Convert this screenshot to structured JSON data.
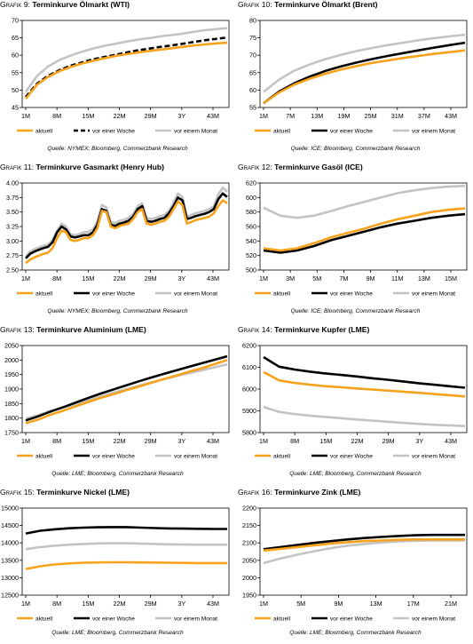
{
  "colors": {
    "aktuell": "#f7a21b",
    "woche": "#000000",
    "monat": "#c3c3c3"
  },
  "chart_data": [
    {
      "type": "line",
      "prefix": "Grafik 9:",
      "name": "Terminkurve Ölmarkt (WTI)",
      "source": "Quelle: NYMEX; Bloomberg, Commerzbank Research",
      "ylim": [
        45,
        70
      ],
      "yticks": [
        "45",
        "50",
        "55",
        "60",
        "65",
        "70"
      ],
      "xticks": [
        "1M",
        "8M",
        "15M",
        "22M",
        "29M",
        "3Y",
        "43M"
      ],
      "series": [
        {
          "name": "aktuell",
          "style": "aktuell",
          "values": [
            47.5,
            51.5,
            53.8,
            55.4,
            56.6,
            57.6,
            58.4,
            59.1,
            59.8,
            60.3,
            60.8,
            61.2,
            61.6,
            62.0,
            62.4,
            62.8,
            63.1,
            63.4,
            63.6
          ]
        },
        {
          "name": "vor einer Woche",
          "style": "woche-dash",
          "values": [
            48.0,
            51.8,
            54.1,
            55.7,
            57.0,
            57.9,
            58.8,
            59.5,
            60.1,
            60.8,
            61.4,
            61.9,
            62.4,
            62.8,
            63.3,
            63.8,
            64.3,
            64.7,
            65.1
          ]
        },
        {
          "name": "vor einem Monat",
          "style": "monat",
          "values": [
            49.5,
            54.0,
            56.8,
            58.6,
            59.9,
            61.0,
            61.9,
            62.7,
            63.3,
            63.9,
            64.5,
            64.9,
            65.4,
            65.8,
            66.2,
            66.7,
            67.2,
            67.5,
            67.8
          ]
        }
      ]
    },
    {
      "type": "line",
      "prefix": "Grafik 10:",
      "name": "Terminkurve Ölmarkt (Brent)",
      "source": "Quelle: ICE; Bloomberg, Commerzbank Research",
      "ylim": [
        55,
        80
      ],
      "yticks": [
        "55",
        "60",
        "65",
        "70",
        "75",
        "80"
      ],
      "xticks": [
        "1M",
        "7M",
        "13M",
        "19M",
        "25M",
        "31M",
        "37M",
        "43M"
      ],
      "series": [
        {
          "name": "aktuell",
          "style": "aktuell",
          "values": [
            56.2,
            59.3,
            61.6,
            63.3,
            64.7,
            65.9,
            66.9,
            67.8,
            68.5,
            69.2,
            69.8,
            70.4,
            70.9,
            71.4
          ]
        },
        {
          "name": "vor einer Woche",
          "style": "woche",
          "values": [
            56.2,
            59.6,
            62.0,
            63.9,
            65.5,
            66.8,
            67.9,
            68.9,
            69.8,
            70.6,
            71.4,
            72.2,
            72.9,
            73.6
          ]
        },
        {
          "name": "vor einem Monat",
          "style": "monat",
          "values": [
            59.5,
            63.0,
            65.6,
            67.4,
            68.9,
            70.1,
            71.2,
            72.1,
            72.9,
            73.6,
            74.3,
            74.9,
            75.4,
            75.9
          ]
        }
      ]
    },
    {
      "type": "line",
      "prefix": "Grafik 11:",
      "name": "Terminkurve Gasmarkt (Henry Hub)",
      "source": "Quelle: NYMEX; Bloomberg, Commerzbank Research",
      "ylim": [
        2.5,
        4.0
      ],
      "yticks": [
        "2.50",
        "2.75",
        "3.00",
        "3.25",
        "3.50",
        "3.75",
        "4.00"
      ],
      "xticks": [
        "1M",
        "8M",
        "15M",
        "22M",
        "29M",
        "3Y",
        "43M"
      ],
      "series": [
        {
          "name": "aktuell",
          "style": "aktuell",
          "values": [
            2.62,
            2.68,
            2.72,
            2.75,
            2.78,
            2.8,
            2.88,
            3.05,
            3.18,
            3.15,
            3.02,
            3.0,
            3.02,
            3.05,
            3.05,
            3.1,
            3.22,
            3.52,
            3.5,
            3.25,
            3.22,
            3.26,
            3.28,
            3.3,
            3.38,
            3.5,
            3.55,
            3.3,
            3.28,
            3.3,
            3.33,
            3.35,
            3.42,
            3.55,
            3.68,
            3.62,
            3.3,
            3.33,
            3.36,
            3.38,
            3.4,
            3.42,
            3.48,
            3.6,
            3.7,
            3.65
          ]
        },
        {
          "name": "vor einer Woche",
          "style": "woche",
          "values": [
            2.7,
            2.78,
            2.82,
            2.85,
            2.88,
            2.9,
            2.98,
            3.15,
            3.25,
            3.2,
            3.08,
            3.06,
            3.08,
            3.1,
            3.1,
            3.15,
            3.28,
            3.55,
            3.52,
            3.28,
            3.26,
            3.3,
            3.32,
            3.35,
            3.42,
            3.55,
            3.6,
            3.35,
            3.33,
            3.35,
            3.38,
            3.4,
            3.48,
            3.6,
            3.75,
            3.7,
            3.38,
            3.4,
            3.43,
            3.45,
            3.47,
            3.5,
            3.55,
            3.72,
            3.82,
            3.76
          ]
        },
        {
          "name": "vor einem Monat",
          "style": "monat",
          "values": [
            2.73,
            2.82,
            2.86,
            2.89,
            2.92,
            2.94,
            3.02,
            3.18,
            3.3,
            3.25,
            3.12,
            3.1,
            3.12,
            3.15,
            3.16,
            3.2,
            3.34,
            3.62,
            3.58,
            3.33,
            3.31,
            3.35,
            3.37,
            3.4,
            3.47,
            3.6,
            3.65,
            3.4,
            3.38,
            3.4,
            3.43,
            3.45,
            3.52,
            3.66,
            3.82,
            3.76,
            3.42,
            3.45,
            3.48,
            3.5,
            3.52,
            3.55,
            3.6,
            3.8,
            3.92,
            3.85
          ]
        }
      ]
    },
    {
      "type": "line",
      "prefix": "Grafik 12:",
      "name": "Terminkurve Gasöl (ICE)",
      "source": "Quelle: ICE; Bloomberg, Commerzbank Research",
      "ylim": [
        500,
        620
      ],
      "yticks": [
        "500",
        "520",
        "540",
        "560",
        "580",
        "600",
        "620"
      ],
      "xticks": [
        "1M",
        "3M",
        "5M",
        "7M",
        "9M",
        "11M",
        "13M",
        "15M"
      ],
      "series": [
        {
          "name": "aktuell",
          "style": "aktuell",
          "values": [
            530,
            527,
            530,
            537,
            545,
            551,
            557,
            564,
            570,
            575,
            580,
            583,
            585
          ]
        },
        {
          "name": "vor einer Woche",
          "style": "woche",
          "values": [
            527,
            524,
            527,
            533,
            541,
            547,
            553,
            559,
            564,
            568,
            572,
            575,
            577
          ]
        },
        {
          "name": "vor einem Monat",
          "style": "monat",
          "values": [
            586,
            575,
            572,
            575,
            581,
            588,
            594,
            600,
            606,
            610,
            613,
            615,
            616
          ]
        }
      ]
    },
    {
      "type": "line",
      "prefix": "Grafik 13:",
      "name": "Terminkurve Aluminium (LME)",
      "source": "Quelle: LME; Bloomberg, Commerzbank Research",
      "ylim": [
        1750,
        2050
      ],
      "yticks": [
        "1750",
        "1800",
        "1850",
        "1900",
        "1950",
        "2000",
        "2050"
      ],
      "xticks": [
        "1M",
        "8M",
        "15M",
        "22M",
        "29M",
        "3Y",
        "43M"
      ],
      "series": [
        {
          "name": "aktuell",
          "style": "aktuell",
          "values": [
            1782,
            1795,
            1812,
            1826,
            1841,
            1856,
            1870,
            1883,
            1896,
            1909,
            1922,
            1935,
            1947,
            1960,
            1972,
            1986,
            2000
          ]
        },
        {
          "name": "vor einer Woche",
          "style": "woche",
          "values": [
            1792,
            1806,
            1823,
            1838,
            1854,
            1870,
            1885,
            1899,
            1913,
            1927,
            1940,
            1953,
            1965,
            1977,
            1989,
            2001,
            2013
          ]
        },
        {
          "name": "vor einem Monat",
          "style": "monat",
          "values": [
            1798,
            1810,
            1825,
            1837,
            1849,
            1862,
            1875,
            1888,
            1900,
            1912,
            1923,
            1934,
            1945,
            1955,
            1965,
            1975,
            1985
          ]
        }
      ]
    },
    {
      "type": "line",
      "prefix": "Grafik 14:",
      "name": "Terminkurve Kupfer (LME)",
      "source": "Quelle: LME; Bloomberg, Commerzbank Research",
      "ylim": [
        5800,
        6200
      ],
      "yticks": [
        "5800",
        "5900",
        "6000",
        "6100",
        "6200"
      ],
      "xticks": [
        "1M",
        "8M",
        "15M",
        "22M",
        "29M",
        "3Y",
        "43M"
      ],
      "series": [
        {
          "name": "aktuell",
          "style": "aktuell",
          "values": [
            6078,
            6040,
            6028,
            6020,
            6013,
            6008,
            6003,
            5998,
            5993,
            5988,
            5983,
            5977,
            5972,
            5966
          ]
        },
        {
          "name": "vor einer Woche",
          "style": "woche",
          "values": [
            6147,
            6103,
            6090,
            6080,
            6072,
            6065,
            6058,
            6050,
            6043,
            6035,
            6027,
            6020,
            6013,
            6006
          ]
        },
        {
          "name": "vor einem Monat",
          "style": "monat",
          "values": [
            5918,
            5895,
            5885,
            5878,
            5872,
            5866,
            5860,
            5855,
            5850,
            5845,
            5840,
            5836,
            5833,
            5830
          ]
        }
      ]
    },
    {
      "type": "line",
      "prefix": "Grafik 15:",
      "name": "Terminkurve Nickel (LME)",
      "source": "Quelle: LME; Bloomberg, Commerzbank Research",
      "ylim": [
        12500,
        15000
      ],
      "yticks": [
        "12500",
        "13000",
        "13500",
        "14000",
        "14500",
        "15000"
      ],
      "xticks": [
        "1M",
        "8M",
        "15M",
        "22M",
        "29M",
        "3Y",
        "43M"
      ],
      "series": [
        {
          "name": "aktuell",
          "style": "aktuell",
          "values": [
            13250,
            13330,
            13380,
            13410,
            13430,
            13440,
            13445,
            13445,
            13440,
            13435,
            13430,
            13425,
            13420,
            13420,
            13420
          ]
        },
        {
          "name": "vor einer Woche",
          "style": "woche",
          "values": [
            14270,
            14350,
            14390,
            14420,
            14440,
            14450,
            14455,
            14455,
            14440,
            14425,
            14415,
            14410,
            14405,
            14400,
            14400
          ]
        },
        {
          "name": "vor einem Monat",
          "style": "monat",
          "values": [
            13820,
            13880,
            13920,
            13950,
            13970,
            13985,
            13990,
            13990,
            13980,
            13970,
            13960,
            13955,
            13950,
            13950,
            13950
          ]
        }
      ]
    },
    {
      "type": "line",
      "prefix": "Grafik 16:",
      "name": "Terminkurve Zink (LME)",
      "source": "Quelle: LME; Bloomberg, Commerzbank Research",
      "ylim": [
        1950,
        2200
      ],
      "yticks": [
        "1950",
        "2000",
        "2050",
        "2100",
        "2150",
        "2200"
      ],
      "xticks": [
        "1M",
        "5M",
        "9M",
        "13M",
        "17M",
        "21M"
      ],
      "series": [
        {
          "name": "aktuell",
          "style": "aktuell",
          "values": [
            2078,
            2083,
            2088,
            2093,
            2098,
            2102,
            2105,
            2107,
            2109,
            2110,
            2110,
            2110,
            2110
          ]
        },
        {
          "name": "vor einer Woche",
          "style": "woche",
          "values": [
            2082,
            2088,
            2094,
            2100,
            2105,
            2110,
            2114,
            2117,
            2120,
            2122,
            2123,
            2123,
            2123
          ]
        },
        {
          "name": "vor einem Monat",
          "style": "monat",
          "values": [
            2042,
            2055,
            2066,
            2076,
            2085,
            2092,
            2097,
            2101,
            2104,
            2106,
            2107,
            2107,
            2107
          ]
        }
      ]
    }
  ]
}
